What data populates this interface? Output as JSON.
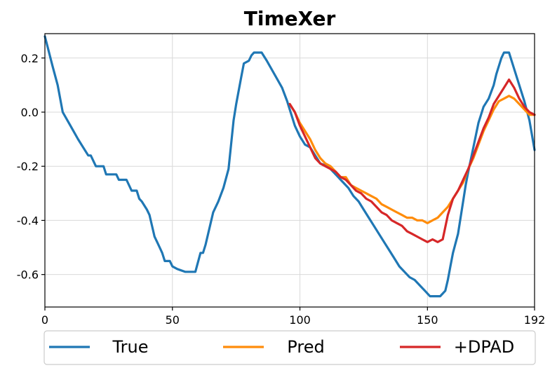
{
  "chart_data": {
    "type": "line",
    "title": "TimeXer",
    "xlabel": "",
    "ylabel": "",
    "xlim": [
      0,
      192
    ],
    "ylim": [
      -0.72,
      0.29
    ],
    "x_ticks": [
      0,
      50,
      100,
      150,
      192
    ],
    "x_tick_labels": [
      "0",
      "50",
      "100",
      "150",
      "192"
    ],
    "y_ticks": [
      0.2,
      0.0,
      -0.2,
      -0.4,
      -0.6
    ],
    "y_tick_labels": [
      "0.2",
      "0.0",
      "-0.2",
      "-0.4",
      "-0.6"
    ],
    "grid": true,
    "legend_position": "bottom",
    "series": [
      {
        "name": "True",
        "color": "#1f77b4",
        "points": [
          [
            0,
            0.28
          ],
          [
            3,
            0.17
          ],
          [
            5,
            0.1
          ],
          [
            7,
            0.0
          ],
          [
            10,
            -0.05
          ],
          [
            13,
            -0.1
          ],
          [
            15,
            -0.13
          ],
          [
            17,
            -0.16
          ],
          [
            18,
            -0.16
          ],
          [
            20,
            -0.2
          ],
          [
            23,
            -0.2
          ],
          [
            24,
            -0.23
          ],
          [
            28,
            -0.23
          ],
          [
            29,
            -0.25
          ],
          [
            32,
            -0.25
          ],
          [
            34,
            -0.29
          ],
          [
            36,
            -0.29
          ],
          [
            37,
            -0.32
          ],
          [
            38,
            -0.33
          ],
          [
            40,
            -0.36
          ],
          [
            41,
            -0.38
          ],
          [
            42,
            -0.42
          ],
          [
            43,
            -0.46
          ],
          [
            44,
            -0.48
          ],
          [
            45,
            -0.5
          ],
          [
            46,
            -0.52
          ],
          [
            47,
            -0.55
          ],
          [
            49,
            -0.55
          ],
          [
            50,
            -0.57
          ],
          [
            52,
            -0.58
          ],
          [
            55,
            -0.59
          ],
          [
            59,
            -0.59
          ],
          [
            61,
            -0.52
          ],
          [
            62,
            -0.52
          ],
          [
            63,
            -0.49
          ],
          [
            66,
            -0.37
          ],
          [
            68,
            -0.33
          ],
          [
            70,
            -0.28
          ],
          [
            72,
            -0.21
          ],
          [
            73,
            -0.12
          ],
          [
            74,
            -0.03
          ],
          [
            75,
            0.03
          ],
          [
            76,
            0.08
          ],
          [
            77,
            0.13
          ],
          [
            78,
            0.18
          ],
          [
            80,
            0.19
          ],
          [
            81,
            0.21
          ],
          [
            82,
            0.22
          ],
          [
            85,
            0.22
          ],
          [
            87,
            0.19
          ],
          [
            90,
            0.14
          ],
          [
            93,
            0.09
          ],
          [
            95,
            0.04
          ],
          [
            96,
            0.01
          ],
          [
            98,
            -0.05
          ],
          [
            100,
            -0.09
          ],
          [
            102,
            -0.12
          ],
          [
            104,
            -0.13
          ],
          [
            106,
            -0.16
          ],
          [
            108,
            -0.19
          ],
          [
            111,
            -0.2
          ],
          [
            113,
            -0.22
          ],
          [
            115,
            -0.24
          ],
          [
            117,
            -0.26
          ],
          [
            119,
            -0.28
          ],
          [
            121,
            -0.31
          ],
          [
            123,
            -0.33
          ],
          [
            125,
            -0.36
          ],
          [
            127,
            -0.39
          ],
          [
            129,
            -0.42
          ],
          [
            131,
            -0.45
          ],
          [
            133,
            -0.48
          ],
          [
            135,
            -0.51
          ],
          [
            137,
            -0.54
          ],
          [
            139,
            -0.57
          ],
          [
            141,
            -0.59
          ],
          [
            143,
            -0.61
          ],
          [
            145,
            -0.62
          ],
          [
            147,
            -0.64
          ],
          [
            149,
            -0.66
          ],
          [
            151,
            -0.68
          ],
          [
            155,
            -0.68
          ],
          [
            157,
            -0.66
          ],
          [
            158,
            -0.62
          ],
          [
            159,
            -0.57
          ],
          [
            160,
            -0.52
          ],
          [
            162,
            -0.45
          ],
          [
            164,
            -0.33
          ],
          [
            165,
            -0.27
          ],
          [
            166,
            -0.22
          ],
          [
            168,
            -0.13
          ],
          [
            170,
            -0.04
          ],
          [
            172,
            0.02
          ],
          [
            174,
            0.05
          ],
          [
            176,
            0.1
          ],
          [
            177,
            0.14
          ],
          [
            178,
            0.17
          ],
          [
            179,
            0.2
          ],
          [
            180,
            0.22
          ],
          [
            182,
            0.22
          ],
          [
            184,
            0.16
          ],
          [
            186,
            0.1
          ],
          [
            188,
            0.04
          ],
          [
            190,
            -0.03
          ],
          [
            192,
            -0.14
          ]
        ]
      },
      {
        "name": "Pred",
        "color": "#ff8c0a",
        "points": [
          [
            96,
            0.03
          ],
          [
            98,
            0.0
          ],
          [
            100,
            -0.04
          ],
          [
            102,
            -0.07
          ],
          [
            104,
            -0.1
          ],
          [
            106,
            -0.14
          ],
          [
            108,
            -0.17
          ],
          [
            110,
            -0.19
          ],
          [
            112,
            -0.2
          ],
          [
            114,
            -0.22
          ],
          [
            116,
            -0.24
          ],
          [
            118,
            -0.24
          ],
          [
            120,
            -0.27
          ],
          [
            122,
            -0.28
          ],
          [
            124,
            -0.29
          ],
          [
            126,
            -0.3
          ],
          [
            128,
            -0.31
          ],
          [
            130,
            -0.32
          ],
          [
            132,
            -0.34
          ],
          [
            134,
            -0.35
          ],
          [
            136,
            -0.36
          ],
          [
            138,
            -0.37
          ],
          [
            140,
            -0.38
          ],
          [
            142,
            -0.39
          ],
          [
            144,
            -0.39
          ],
          [
            146,
            -0.4
          ],
          [
            148,
            -0.4
          ],
          [
            150,
            -0.41
          ],
          [
            152,
            -0.4
          ],
          [
            154,
            -0.39
          ],
          [
            156,
            -0.37
          ],
          [
            158,
            -0.35
          ],
          [
            160,
            -0.32
          ],
          [
            162,
            -0.29
          ],
          [
            164,
            -0.26
          ],
          [
            166,
            -0.21
          ],
          [
            168,
            -0.17
          ],
          [
            170,
            -0.12
          ],
          [
            172,
            -0.07
          ],
          [
            174,
            -0.03
          ],
          [
            176,
            0.01
          ],
          [
            178,
            0.04
          ],
          [
            180,
            0.05
          ],
          [
            182,
            0.06
          ],
          [
            184,
            0.05
          ],
          [
            186,
            0.03
          ],
          [
            188,
            0.01
          ],
          [
            190,
            -0.01
          ],
          [
            192,
            -0.01
          ]
        ]
      },
      {
        "name": "+DPAD",
        "color": "#d62728",
        "points": [
          [
            96,
            0.03
          ],
          [
            98,
            0.0
          ],
          [
            100,
            -0.05
          ],
          [
            102,
            -0.09
          ],
          [
            104,
            -0.13
          ],
          [
            106,
            -0.17
          ],
          [
            108,
            -0.19
          ],
          [
            110,
            -0.2
          ],
          [
            112,
            -0.21
          ],
          [
            114,
            -0.22
          ],
          [
            116,
            -0.24
          ],
          [
            118,
            -0.25
          ],
          [
            120,
            -0.27
          ],
          [
            122,
            -0.29
          ],
          [
            124,
            -0.3
          ],
          [
            126,
            -0.32
          ],
          [
            128,
            -0.33
          ],
          [
            130,
            -0.35
          ],
          [
            132,
            -0.37
          ],
          [
            134,
            -0.38
          ],
          [
            136,
            -0.4
          ],
          [
            138,
            -0.41
          ],
          [
            140,
            -0.42
          ],
          [
            142,
            -0.44
          ],
          [
            144,
            -0.45
          ],
          [
            146,
            -0.46
          ],
          [
            148,
            -0.47
          ],
          [
            150,
            -0.48
          ],
          [
            152,
            -0.47
          ],
          [
            154,
            -0.48
          ],
          [
            156,
            -0.47
          ],
          [
            158,
            -0.38
          ],
          [
            160,
            -0.32
          ],
          [
            162,
            -0.29
          ],
          [
            164,
            -0.25
          ],
          [
            166,
            -0.21
          ],
          [
            168,
            -0.16
          ],
          [
            170,
            -0.11
          ],
          [
            172,
            -0.06
          ],
          [
            174,
            -0.02
          ],
          [
            176,
            0.03
          ],
          [
            178,
            0.06
          ],
          [
            180,
            0.09
          ],
          [
            182,
            0.12
          ],
          [
            184,
            0.09
          ],
          [
            186,
            0.05
          ],
          [
            188,
            0.02
          ],
          [
            190,
            0.0
          ],
          [
            192,
            -0.01
          ]
        ]
      }
    ]
  }
}
